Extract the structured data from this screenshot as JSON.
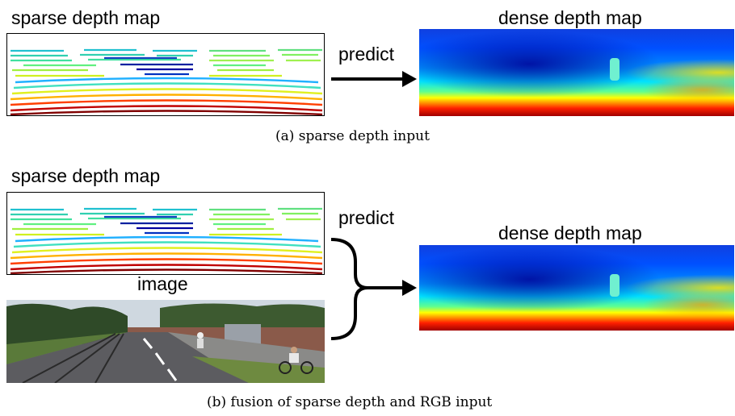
{
  "panel_a": {
    "sparse_label": "sparse depth map",
    "arrow_label": "predict",
    "dense_label": "dense depth map",
    "caption": "(a) sparse depth input"
  },
  "panel_b": {
    "sparse_label": "sparse depth map",
    "image_label": "image",
    "arrow_label": "predict",
    "dense_label": "dense depth map",
    "caption": "(b) fusion of sparse depth and RGB input"
  },
  "colors": {
    "depth_near": "#7f0000",
    "depth_mid": "#ffff00",
    "depth_far": "#00007f",
    "arrow": "#000000"
  }
}
